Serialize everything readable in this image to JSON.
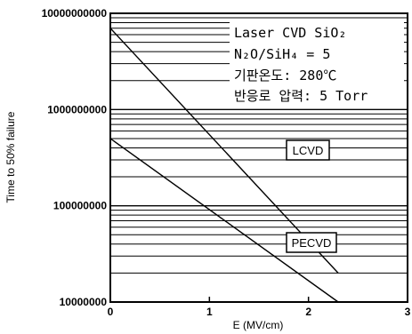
{
  "chart_data": {
    "type": "line",
    "xlabel": "E (MV/cm)",
    "ylabel": "Time to 50% failure",
    "xlim": [
      0,
      3
    ],
    "ylim": [
      10000000,
      10000000000
    ],
    "y_scale": "log",
    "grid": true,
    "x_ticks": [
      "0",
      "1",
      "2",
      "3"
    ],
    "y_ticks": [
      "10000000",
      "100000000",
      "1000000000",
      "10000000000"
    ],
    "series": [
      {
        "name": "LCVD",
        "x": [
          0,
          2.3
        ],
        "y": [
          7000000000,
          20000000
        ]
      },
      {
        "name": "PECVD",
        "x": [
          0,
          2.3
        ],
        "y": [
          500000000,
          10000000
        ]
      }
    ],
    "annotation_lines": [
      "Laser CVD SiO₂",
      "N₂O/SiH₄ = 5",
      "기판온도: 280℃",
      "반응로 압력: 5 Torr"
    ]
  }
}
